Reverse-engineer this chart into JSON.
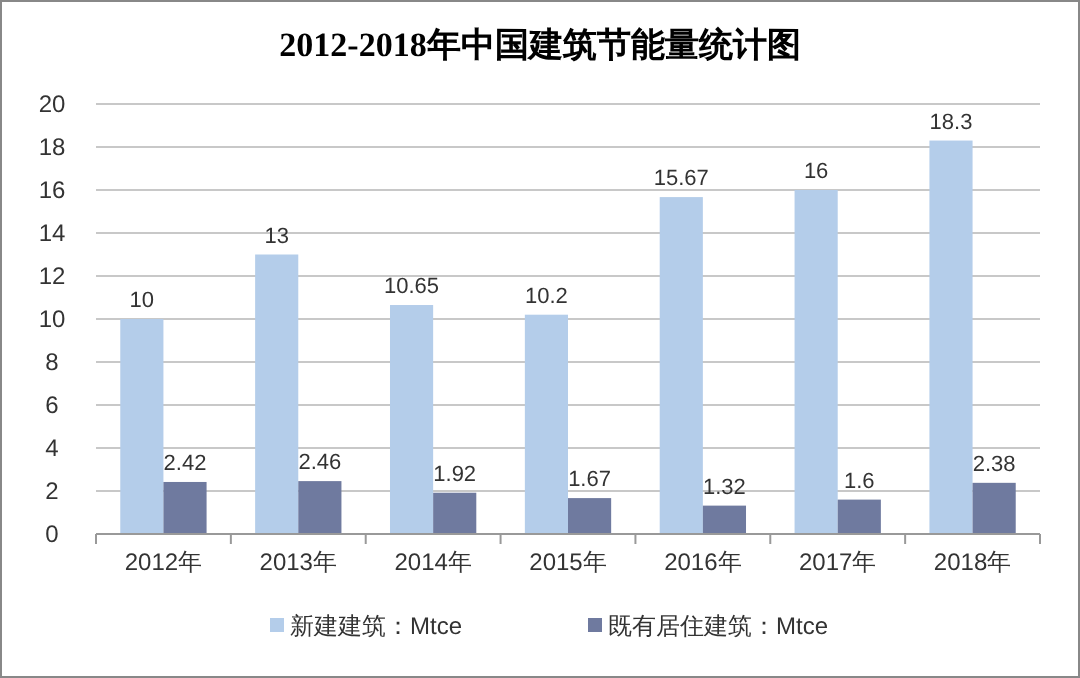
{
  "chart_data": {
    "type": "bar",
    "title": "2012-2018年中国建筑节能量统计图",
    "categories": [
      "2012年",
      "2013年",
      "2014年",
      "2015年",
      "2016年",
      "2017年",
      "2018年"
    ],
    "series": [
      {
        "name": "新建建筑：Mtce",
        "color": "#b4cdea",
        "values": [
          10,
          13,
          10.65,
          10.2,
          15.67,
          16,
          18.3
        ]
      },
      {
        "name": "既有居住建筑：Mtce",
        "color": "#6f7a9f",
        "values": [
          2.42,
          2.46,
          1.92,
          1.67,
          1.32,
          1.6,
          2.38
        ]
      }
    ],
    "ylim": [
      0,
      20
    ],
    "yticks": [
      0,
      2,
      4,
      6,
      8,
      10,
      12,
      14,
      16,
      18,
      20
    ],
    "grid": "y",
    "legend": "bottom",
    "data_labels": true
  }
}
